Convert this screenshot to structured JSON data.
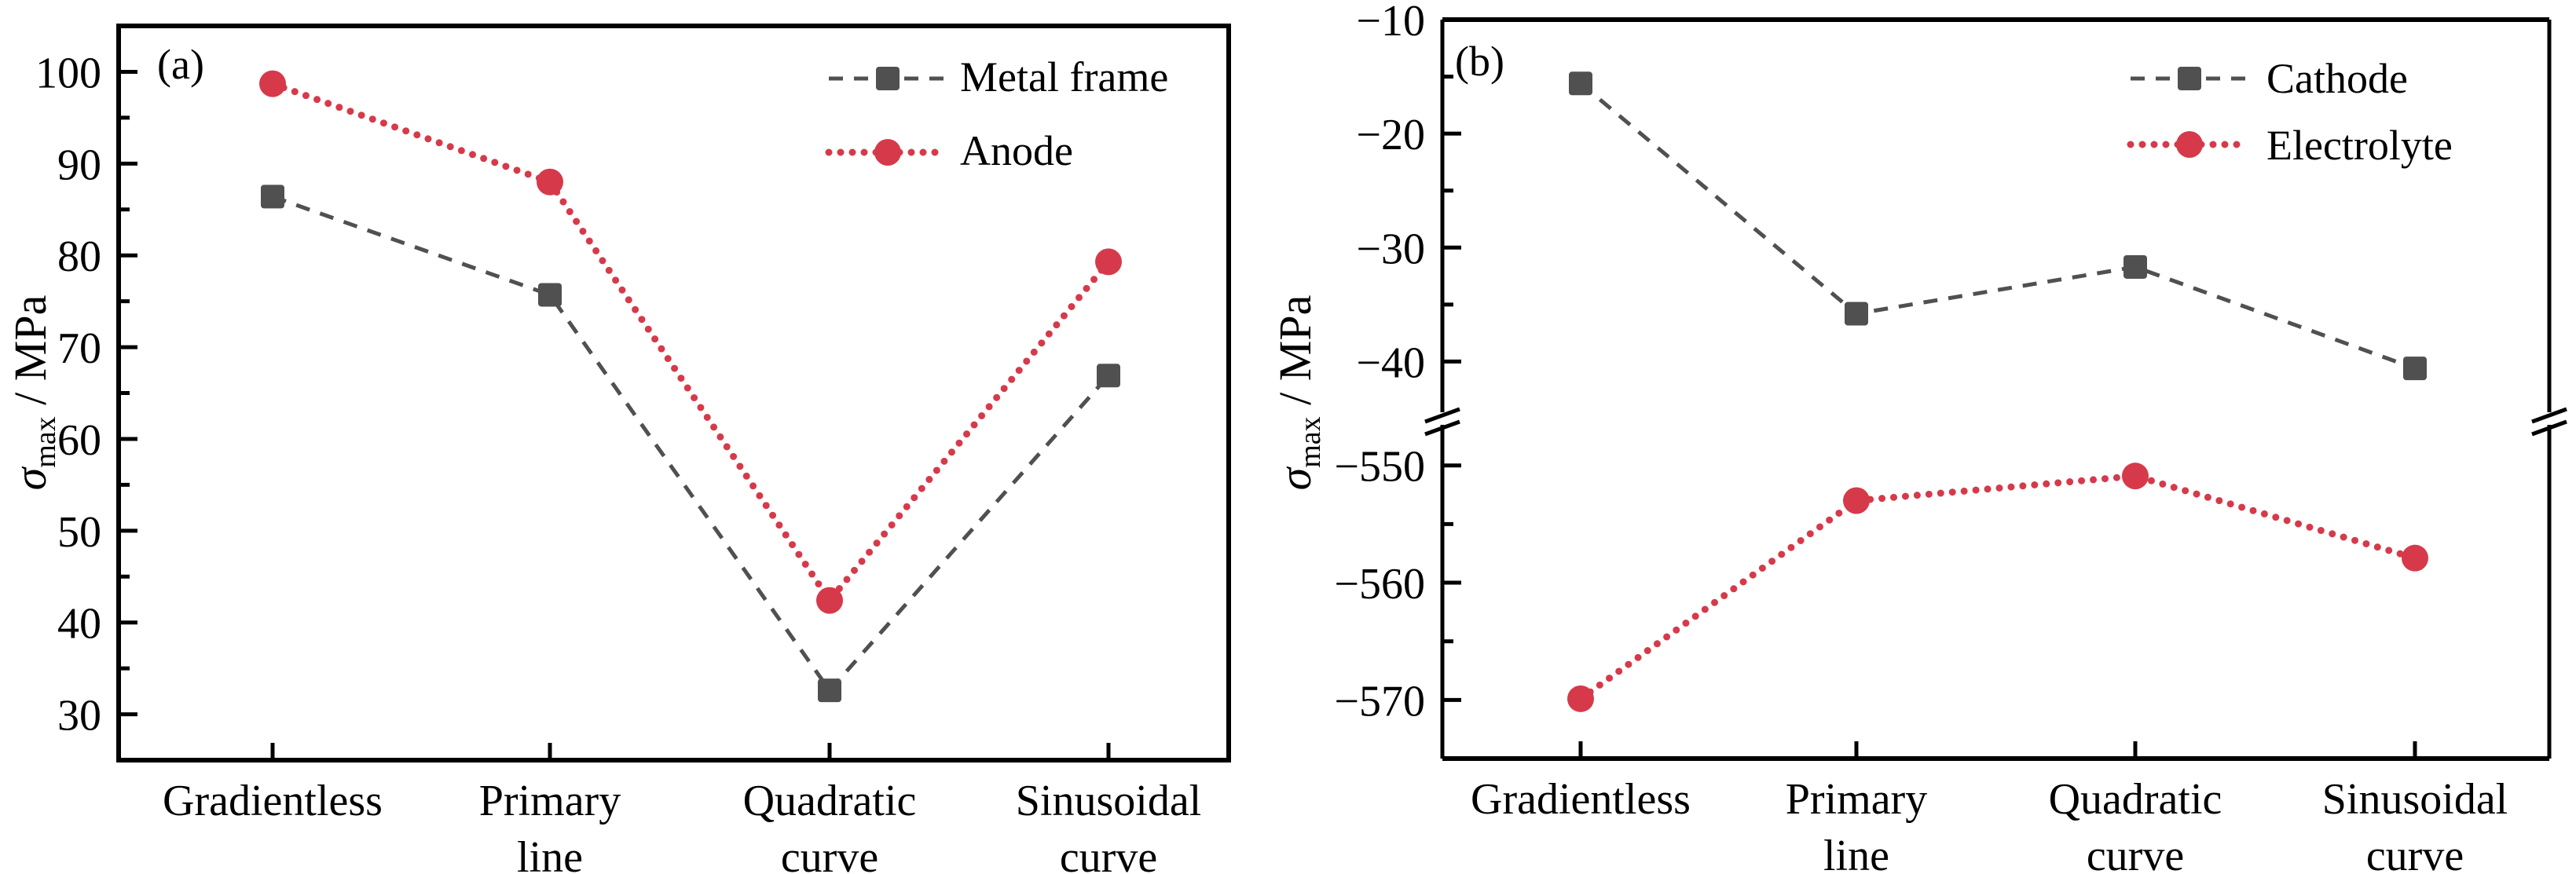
{
  "chart_data": [
    {
      "panel": "(a)",
      "type": "line",
      "title": "",
      "xlabel": "",
      "ylabel": "σmax / MPa",
      "ylabel_parts": {
        "symbol": "σ",
        "subscript": "max",
        "unit": " / MPa"
      },
      "categories": [
        [
          "Gradientless"
        ],
        [
          "Primary",
          "line"
        ],
        [
          "Quadratic",
          "curve"
        ],
        [
          "Sinusoidal",
          "curve"
        ]
      ],
      "ylim": [
        25,
        105
      ],
      "yticks": [
        30,
        40,
        50,
        60,
        70,
        80,
        90,
        100
      ],
      "yticks_minor": [
        35,
        45,
        55,
        65,
        75,
        85,
        95
      ],
      "grid": false,
      "legend_position": "top-right",
      "series": [
        {
          "name": "Metal frame",
          "values": [
            86.4,
            75.7,
            32.6,
            66.9
          ],
          "color": "#505050",
          "marker": "square",
          "line": "dashed"
        },
        {
          "name": "Anode",
          "values": [
            98.7,
            88.0,
            42.4,
            79.3
          ],
          "color": "#d63a4a",
          "marker": "circle",
          "line": "dotted"
        }
      ]
    },
    {
      "panel": "(b)",
      "type": "line",
      "title": "",
      "xlabel": "",
      "ylabel": "σmax / MPa",
      "ylabel_parts": {
        "symbol": "σ",
        "subscript": "max",
        "unit": " / MPa"
      },
      "categories": [
        [
          "Gradientless"
        ],
        [
          "Primary",
          "line"
        ],
        [
          "Quadratic",
          "curve"
        ],
        [
          "Sinusoidal",
          "curve"
        ]
      ],
      "broken_axis": true,
      "ylim_upper": [
        -45,
        -10
      ],
      "ylim_lower": [
        -575,
        -546
      ],
      "yticks_upper": [
        -10,
        -20,
        -30,
        -40
      ],
      "yticks_upper_minor": [
        -15,
        -25,
        -35
      ],
      "yticks_lower": [
        -550,
        -560,
        -570
      ],
      "yticks_lower_minor": [
        -555,
        -565
      ],
      "tick_label_prefix": "−",
      "grid": false,
      "legend_position": "top-right",
      "series": [
        {
          "name": "Cathode",
          "values": [
            -15.6,
            -35.8,
            -31.7,
            -40.6
          ],
          "color": "#505050",
          "marker": "square",
          "line": "dashed",
          "segment": "upper"
        },
        {
          "name": "Electrolyte",
          "values": [
            -569.9,
            -553.0,
            -550.9,
            -557.9
          ],
          "color": "#d63a4a",
          "marker": "circle",
          "line": "dotted",
          "segment": "lower"
        }
      ]
    }
  ]
}
